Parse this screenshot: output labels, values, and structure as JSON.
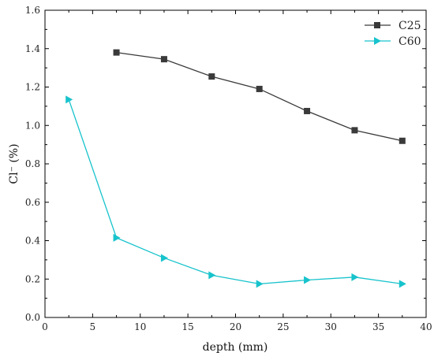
{
  "chart_data": {
    "type": "line",
    "xlabel": "depth (mm)",
    "ylabel": "Cl⁻ (%)",
    "xlim": [
      0,
      40
    ],
    "ylim": [
      0,
      1.6
    ],
    "xticks": [
      "0",
      "5",
      "10",
      "15",
      "20",
      "25",
      "30",
      "35",
      "40"
    ],
    "yticks": [
      "0.0",
      "0.2",
      "0.4",
      "0.6",
      "0.8",
      "1.0",
      "1.2",
      "1.4",
      "1.6"
    ],
    "grid": false,
    "legend_position": "top-right",
    "series": [
      {
        "name": "C25",
        "color": "#3a3a3a",
        "marker": "square",
        "x": [
          7.5,
          12.5,
          17.5,
          22.5,
          27.5,
          32.5,
          37.5
        ],
        "y": [
          1.38,
          1.345,
          1.255,
          1.19,
          1.075,
          0.975,
          0.92
        ]
      },
      {
        "name": "C60",
        "color": "#17c3cc",
        "marker": "triangle-right",
        "x": [
          2.5,
          7.5,
          12.5,
          17.5,
          22.5,
          27.5,
          32.5,
          37.5
        ],
        "y": [
          1.135,
          0.415,
          0.31,
          0.22,
          0.175,
          0.195,
          0.21,
          0.175
        ]
      }
    ]
  }
}
